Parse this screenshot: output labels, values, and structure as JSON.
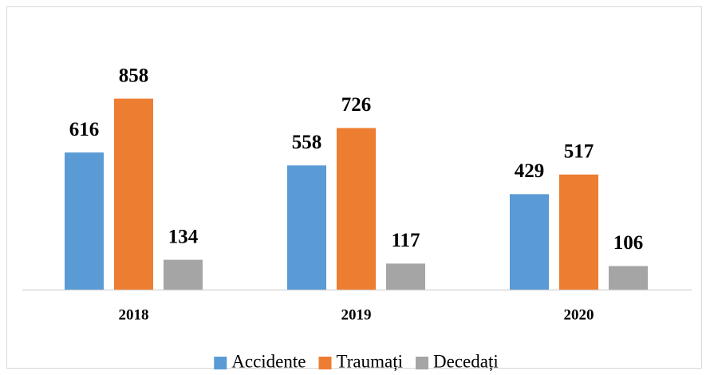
{
  "chart_data": {
    "type": "bar",
    "categories": [
      "2018",
      "2019",
      "2020"
    ],
    "series": [
      {
        "name": "Accidente",
        "color": "#5b9bd5",
        "values": [
          616,
          558,
          429
        ]
      },
      {
        "name": "Traumați",
        "color": "#ed7d31",
        "values": [
          858,
          726,
          517
        ]
      },
      {
        "name": "Decedați",
        "color": "#a5a5a5",
        "values": [
          134,
          117,
          106
        ]
      }
    ],
    "ylim": [
      0,
      1000
    ],
    "legend": "bottom"
  }
}
